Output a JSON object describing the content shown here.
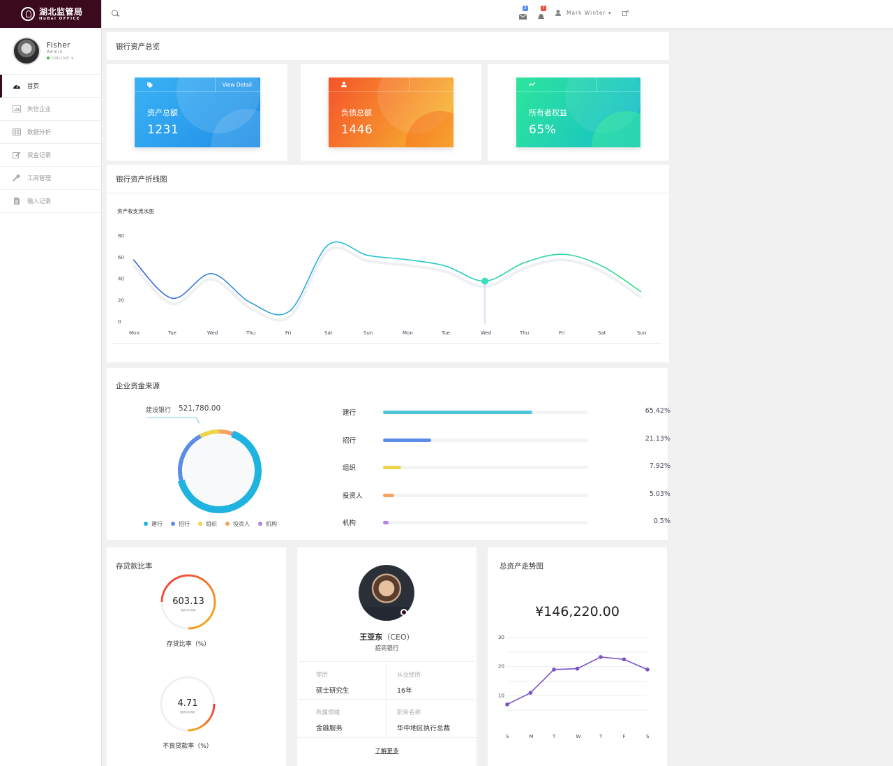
{
  "brand": {
    "title": "湖北监管局",
    "subtitle": "HuBei OFFICE"
  },
  "user": {
    "name": "Fisher",
    "role": "Admin",
    "status": "ONLINE ▾"
  },
  "nav": [
    "首页",
    "失信企业",
    "数据分析",
    "资金记录",
    "工商管理",
    "输入记录"
  ],
  "topbar": {
    "mail_count": "2",
    "notify_count": "7",
    "account": "Mark Winter ▾"
  },
  "overview": {
    "title": "银行资产总览",
    "cards": [
      {
        "label": "资产总额",
        "value": "1231",
        "link": "View Detail"
      },
      {
        "label": "负债总额",
        "value": "1446"
      },
      {
        "label": "所有者权益",
        "value": "65%"
      }
    ]
  },
  "line_panel": {
    "title": "银行资产折线图",
    "subtitle": "资产收支流水图"
  },
  "sources": {
    "title": "企业资金来源",
    "highlight_label": "建设银行",
    "highlight_value": "521,780.00",
    "legend": [
      "建行",
      "招行",
      "组织",
      "投资人",
      "机构"
    ],
    "bars": [
      {
        "label": "建行",
        "pct": "65.42%",
        "value": 65.42,
        "color": "#4fc3d9"
      },
      {
        "label": "招行",
        "pct": "21.13%",
        "value": 21.13,
        "color": "#5b8ce8"
      },
      {
        "label": "组织",
        "pct": "7.92%",
        "value": 7.92,
        "color": "#ecd54a"
      },
      {
        "label": "投资人",
        "pct": "5.03%",
        "value": 5.03,
        "color": "#f5a35f"
      },
      {
        "label": "机构",
        "pct": "0.5%",
        "value": 0.5,
        "color": "#b780e6"
      }
    ]
  },
  "ratio": {
    "title": "存贷款比率",
    "g1_value": "603.13",
    "g1_sub": "融资平均贷款",
    "g1_label": "存贷比率（%）",
    "g2_value": "4.71",
    "g2_sub": "融资平均贷款",
    "g2_label": "不良贷款率（%）"
  },
  "person": {
    "name": "王亚东",
    "title": "（CEO）",
    "org": "招商银行",
    "fields": [
      {
        "k": "学历",
        "v": "硕士研究生"
      },
      {
        "k": "从业经历",
        "v": "16年"
      },
      {
        "k": "所属领域",
        "v": "金融服务"
      },
      {
        "k": "职务名称",
        "v": "华中地区执行总裁"
      }
    ],
    "more": "了解更多"
  },
  "trend": {
    "title": "总资产走势图",
    "total": "¥146,220.00"
  },
  "chart_data": [
    {
      "type": "line",
      "title": "资产收支流水图",
      "categories": [
        "Mon",
        "Tue",
        "Wed",
        "Thu",
        "Fri",
        "Sat",
        "Sun",
        "Mon",
        "Tue",
        "Wed",
        "Thu",
        "Fri",
        "Sat",
        "Sun"
      ],
      "values": [
        58,
        22,
        45,
        18,
        10,
        72,
        62,
        58,
        52,
        38,
        55,
        63,
        52,
        28
      ],
      "ylim": [
        0,
        80
      ],
      "yticks": [
        0,
        20,
        40,
        60,
        80
      ]
    },
    {
      "type": "pie",
      "title": "企业资金来源",
      "labels": [
        "建行",
        "招行",
        "组织",
        "投资人",
        "机构"
      ],
      "values": [
        65.42,
        21.13,
        7.92,
        5.03,
        0.5
      ]
    },
    {
      "type": "line",
      "title": "总资产走势图",
      "categories": [
        "S",
        "M",
        "T",
        "W",
        "T",
        "F",
        "S"
      ],
      "values": [
        7,
        11,
        19,
        19.3,
        23.3,
        22.5,
        19
      ],
      "ylim": [
        0,
        30
      ],
      "yticks": [
        10,
        20,
        30
      ]
    }
  ]
}
